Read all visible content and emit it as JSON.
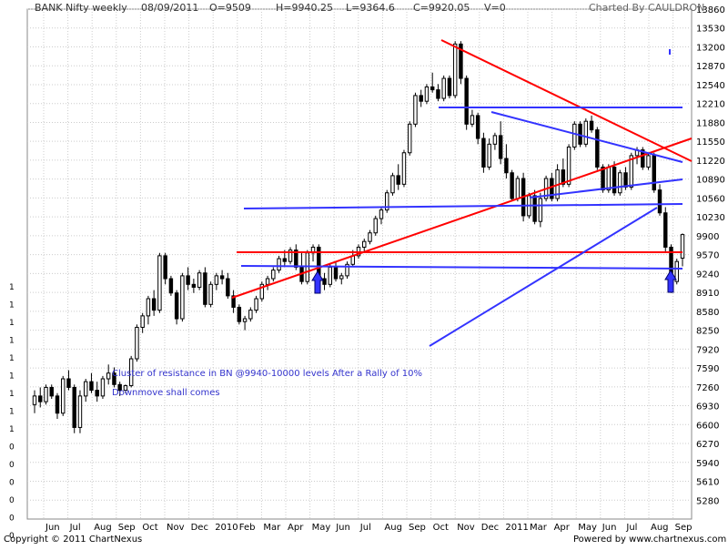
{
  "header": {
    "symbol": "BANK Nifty weekly",
    "date": "08/09/2011",
    "open": "O=9509",
    "high": "H=9940.25",
    "low": "L=9364.6",
    "close": "C=9920.05",
    "volume": "V=0",
    "charted_by": "Charted By CAULDRON"
  },
  "footer": {
    "copyright": "Copyright © 2011 ChartNexus",
    "powered_by": "Powered by www.chartnexus.com"
  },
  "colors": {
    "background": "#ffffff",
    "grid": "#cccccc",
    "candle": "#000000",
    "trend_red": "#ff0000",
    "trend_blue": "#3333ff",
    "annotation_text": "#3333cc"
  },
  "chart_data": {
    "type": "candlestick",
    "title": "BANK Nifty weekly",
    "xlabel": "",
    "ylabel": "",
    "ylim": [
      4950,
      13860
    ],
    "grid": true,
    "y_ticks": [
      "13860",
      "13530",
      "13200",
      "12870",
      "12540",
      "12210",
      "11880",
      "11550",
      "11220",
      "10890",
      "10560",
      "10230",
      "9900",
      "9570",
      "9240",
      "8910",
      "8580",
      "8250",
      "7920",
      "7590",
      "7260",
      "6930",
      "6600",
      "6270",
      "5940",
      "5610",
      "5280"
    ],
    "left_axis_ticks": [
      "1",
      "1",
      "1",
      "1",
      "1",
      "1",
      "1",
      "1",
      "1",
      "0",
      "0",
      "0",
      "0",
      "0",
      "0",
      "0",
      "0"
    ],
    "x_labels": [
      "Jun",
      "Jul",
      "Aug",
      "Sep",
      "Oct",
      "Nov",
      "Dec",
      "2010",
      "Feb",
      "Mar",
      "Apr",
      "May",
      "Jun",
      "Jul",
      "Aug",
      "Sep",
      "Oct",
      "Nov",
      "Dec",
      "2011",
      "Mar",
      "Apr",
      "May",
      "Jun",
      "Jul",
      "Aug",
      "Sep"
    ],
    "annotations": [
      "Cluster of resistance in BN @9940-10000 levels After a Rally of 10%",
      "Downmove shall comes"
    ],
    "candles": [
      [
        6950,
        7200,
        6800,
        7100
      ],
      [
        7100,
        7250,
        6900,
        7000
      ],
      [
        7000,
        7300,
        6950,
        7250
      ],
      [
        7250,
        7300,
        7050,
        7100
      ],
      [
        7100,
        7150,
        6700,
        6800
      ],
      [
        6800,
        7450,
        6750,
        7400
      ],
      [
        7400,
        7550,
        7200,
        7250
      ],
      [
        7250,
        7300,
        6450,
        6550
      ],
      [
        6550,
        7200,
        6450,
        7100
      ],
      [
        7100,
        7400,
        7000,
        7350
      ],
      [
        7350,
        7500,
        7150,
        7200
      ],
      [
        7200,
        7350,
        7000,
        7100
      ],
      [
        7100,
        7450,
        7050,
        7400
      ],
      [
        7400,
        7650,
        7300,
        7500
      ],
      [
        7500,
        7600,
        7250,
        7300
      ],
      [
        7300,
        7350,
        7100,
        7200
      ],
      [
        7200,
        7300,
        7150,
        7280
      ],
      [
        7280,
        7800,
        7250,
        7750
      ],
      [
        7750,
        8350,
        7700,
        8300
      ],
      [
        8300,
        8550,
        8200,
        8500
      ],
      [
        8500,
        8850,
        8350,
        8800
      ],
      [
        8800,
        8950,
        8500,
        8600
      ],
      [
        8600,
        9600,
        8550,
        9550
      ],
      [
        9550,
        9600,
        9050,
        9150
      ],
      [
        9150,
        9200,
        8850,
        8900
      ],
      [
        8900,
        8950,
        8350,
        8450
      ],
      [
        8450,
        9250,
        8400,
        9200
      ],
      [
        9200,
        9350,
        8950,
        9050
      ],
      [
        9050,
        9150,
        8900,
        9000
      ],
      [
        9000,
        9300,
        8950,
        9250
      ],
      [
        9250,
        9350,
        8650,
        8700
      ],
      [
        8700,
        9100,
        8650,
        9050
      ],
      [
        9050,
        9250,
        8950,
        9200
      ],
      [
        9200,
        9300,
        9050,
        9150
      ],
      [
        9150,
        9250,
        8800,
        8850
      ],
      [
        8850,
        8950,
        8550,
        8650
      ],
      [
        8650,
        8700,
        8350,
        8400
      ],
      [
        8400,
        8500,
        8250,
        8450
      ],
      [
        8450,
        8650,
        8400,
        8600
      ],
      [
        8600,
        8850,
        8550,
        8800
      ],
      [
        8800,
        9100,
        8750,
        9050
      ],
      [
        9050,
        9200,
        8950,
        9150
      ],
      [
        9150,
        9350,
        9100,
        9300
      ],
      [
        9300,
        9550,
        9250,
        9500
      ],
      [
        9500,
        9650,
        9350,
        9450
      ],
      [
        9450,
        9700,
        9400,
        9650
      ],
      [
        9650,
        9750,
        9300,
        9350
      ],
      [
        9350,
        9600,
        9050,
        9100
      ],
      [
        9100,
        9650,
        9050,
        9600
      ],
      [
        9600,
        9750,
        9450,
        9700
      ],
      [
        9700,
        9750,
        9100,
        9150
      ],
      [
        9150,
        9250,
        8950,
        9050
      ],
      [
        9050,
        9400,
        9000,
        9350
      ],
      [
        9350,
        9450,
        9100,
        9150
      ],
      [
        9150,
        9250,
        9050,
        9200
      ],
      [
        9200,
        9450,
        9150,
        9400
      ],
      [
        9400,
        9650,
        9350,
        9550
      ],
      [
        9550,
        9750,
        9500,
        9700
      ],
      [
        9700,
        9850,
        9600,
        9800
      ],
      [
        9800,
        10000,
        9750,
        9950
      ],
      [
        9950,
        10250,
        9900,
        10200
      ],
      [
        10200,
        10400,
        10100,
        10350
      ],
      [
        10350,
        10700,
        10300,
        10650
      ],
      [
        10650,
        11000,
        10600,
        10950
      ],
      [
        10950,
        11150,
        10700,
        10800
      ],
      [
        10800,
        11400,
        10750,
        11350
      ],
      [
        11350,
        11900,
        11300,
        11850
      ],
      [
        11850,
        12400,
        11800,
        12350
      ],
      [
        12350,
        12450,
        12150,
        12250
      ],
      [
        12250,
        12550,
        12200,
        12500
      ],
      [
        12500,
        12750,
        12400,
        12450
      ],
      [
        12450,
        12550,
        12250,
        12300
      ],
      [
        12300,
        12700,
        12250,
        12650
      ],
      [
        12650,
        12700,
        12300,
        12350
      ],
      [
        12350,
        13300,
        12300,
        13250
      ],
      [
        13250,
        13300,
        12550,
        12650
      ],
      [
        12650,
        12700,
        11750,
        11850
      ],
      [
        11850,
        12100,
        11800,
        12000
      ],
      [
        12000,
        12050,
        11500,
        11600
      ],
      [
        11600,
        11700,
        11000,
        11100
      ],
      [
        11100,
        11600,
        11050,
        11500
      ],
      [
        11500,
        11700,
        11400,
        11650
      ],
      [
        11650,
        11900,
        11150,
        11250
      ],
      [
        11250,
        11500,
        10900,
        11000
      ],
      [
        11000,
        11050,
        10500,
        10550
      ],
      [
        10550,
        10950,
        10500,
        10900
      ],
      [
        10900,
        11000,
        10150,
        10250
      ],
      [
        10250,
        10650,
        10200,
        10600
      ],
      [
        10600,
        10700,
        10100,
        10150
      ],
      [
        10150,
        10650,
        10050,
        10550
      ],
      [
        10550,
        10950,
        10500,
        10900
      ],
      [
        10900,
        11000,
        10500,
        10550
      ],
      [
        10550,
        11150,
        10500,
        11050
      ],
      [
        11050,
        11250,
        10750,
        10800
      ],
      [
        10800,
        11500,
        10750,
        11450
      ],
      [
        11450,
        11900,
        11400,
        11850
      ],
      [
        11850,
        11900,
        11450,
        11500
      ],
      [
        11500,
        11950,
        11450,
        11900
      ],
      [
        11900,
        12000,
        11700,
        11750
      ],
      [
        11750,
        11800,
        11050,
        11100
      ],
      [
        11100,
        11150,
        10650,
        10700
      ],
      [
        10700,
        11150,
        10650,
        11100
      ],
      [
        11100,
        11200,
        10600,
        10650
      ],
      [
        10650,
        11050,
        10600,
        11000
      ],
      [
        11000,
        11100,
        10700,
        10750
      ],
      [
        10750,
        11350,
        10700,
        11300
      ],
      [
        11300,
        11450,
        11150,
        11400
      ],
      [
        11400,
        11450,
        11050,
        11100
      ],
      [
        11100,
        11350,
        11050,
        11300
      ],
      [
        11300,
        11350,
        10650,
        10700
      ],
      [
        10700,
        10800,
        10250,
        10300
      ],
      [
        10300,
        10400,
        9600,
        9700
      ],
      [
        9700,
        9750,
        8900,
        9100
      ],
      [
        9100,
        9500,
        9050,
        9450
      ],
      [
        9509,
        9940.25,
        9364.6,
        9920.05
      ]
    ],
    "trendlines": [
      {
        "color": "red",
        "x1": 1,
        "y1": 1,
        "x2": 1,
        "y2": 1
      }
    ]
  }
}
